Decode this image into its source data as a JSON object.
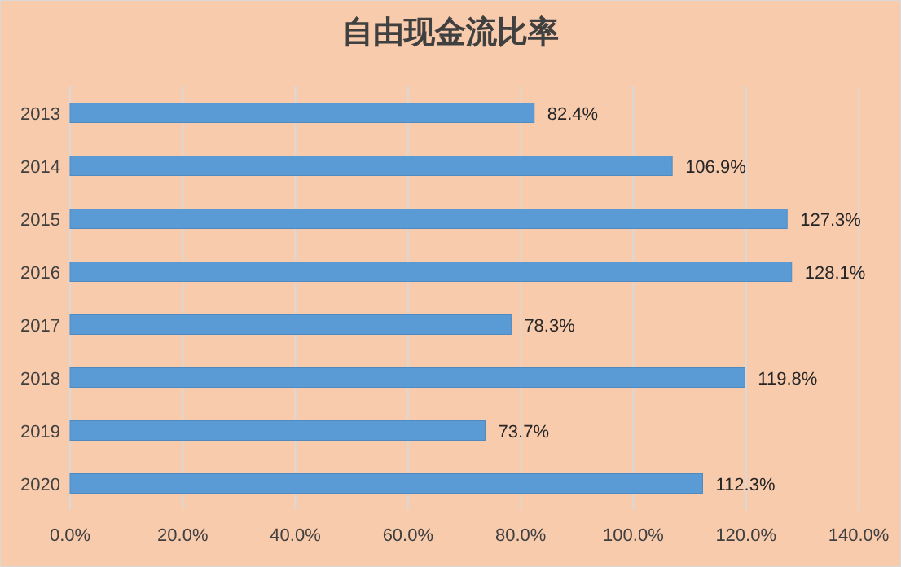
{
  "chart_data": {
    "type": "bar",
    "orientation": "horizontal",
    "title": "自由现金流比率",
    "categories": [
      "2013",
      "2014",
      "2015",
      "2016",
      "2017",
      "2018",
      "2019",
      "2020"
    ],
    "values": [
      82.4,
      106.9,
      127.3,
      128.1,
      78.3,
      119.8,
      73.7,
      112.3
    ],
    "value_labels": [
      "82.4%",
      "106.9%",
      "127.3%",
      "128.1%",
      "78.3%",
      "119.8%",
      "73.7%",
      "112.3%"
    ],
    "color": "#5b9bd5",
    "xlim": [
      0,
      140
    ],
    "xticks": [
      {
        "value": 0,
        "label": "0.0%"
      },
      {
        "value": 20,
        "label": "20.0%"
      },
      {
        "value": 40,
        "label": "40.0%"
      },
      {
        "value": 60,
        "label": "60.0%"
      },
      {
        "value": 80,
        "label": "80.0%"
      },
      {
        "value": 100,
        "label": "100.0%"
      },
      {
        "value": 120,
        "label": "120.0%"
      },
      {
        "value": 140,
        "label": "140.0%"
      }
    ],
    "grid": "x"
  }
}
